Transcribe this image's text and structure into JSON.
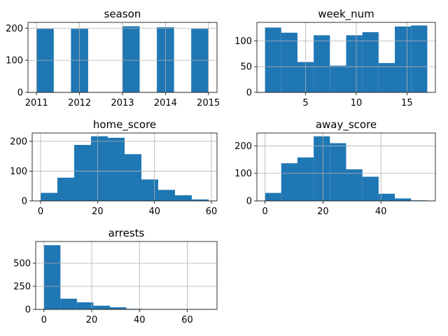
{
  "chart_data": [
    {
      "type": "bar",
      "title": "season",
      "xlim": [
        2010.8,
        2015.2
      ],
      "ylim": [
        0,
        218
      ],
      "xticks": [
        2011,
        2012,
        2013,
        2014,
        2015
      ],
      "yticks": [
        0,
        100,
        200
      ],
      "grid": true,
      "color": "#1f77b4",
      "bins": [
        {
          "x0": 2011.0,
          "x1": 2011.4,
          "count": 198
        },
        {
          "x0": 2011.4,
          "x1": 2011.8,
          "count": 0
        },
        {
          "x0": 2011.8,
          "x1": 2012.2,
          "count": 198
        },
        {
          "x0": 2012.2,
          "x1": 2012.6,
          "count": 0
        },
        {
          "x0": 2012.6,
          "x1": 2013.0,
          "count": 0
        },
        {
          "x0": 2013.0,
          "x1": 2013.4,
          "count": 206
        },
        {
          "x0": 2013.4,
          "x1": 2013.8,
          "count": 0
        },
        {
          "x0": 2013.8,
          "x1": 2014.2,
          "count": 203
        },
        {
          "x0": 2014.2,
          "x1": 2014.6,
          "count": 0
        },
        {
          "x0": 2014.6,
          "x1": 2015.0,
          "count": 198
        }
      ]
    },
    {
      "type": "bar",
      "title": "week_num",
      "xlim": [
        0.2,
        17.8
      ],
      "ylim": [
        0,
        136
      ],
      "xticks": [
        5,
        10,
        15
      ],
      "yticks": [
        0,
        50,
        100
      ],
      "grid": true,
      "color": "#1f77b4",
      "bins": [
        {
          "x0": 1.0,
          "x1": 2.6,
          "count": 126
        },
        {
          "x0": 2.6,
          "x1": 4.2,
          "count": 116
        },
        {
          "x0": 4.2,
          "x1": 5.8,
          "count": 59
        },
        {
          "x0": 5.8,
          "x1": 7.4,
          "count": 111
        },
        {
          "x0": 7.4,
          "x1": 9.0,
          "count": 52
        },
        {
          "x0": 9.0,
          "x1": 10.6,
          "count": 111
        },
        {
          "x0": 10.6,
          "x1": 12.2,
          "count": 117
        },
        {
          "x0": 12.2,
          "x1": 13.8,
          "count": 57
        },
        {
          "x0": 13.8,
          "x1": 15.4,
          "count": 128
        },
        {
          "x0": 15.4,
          "x1": 17.0,
          "count": 130
        }
      ]
    },
    {
      "type": "bar",
      "title": "home_score",
      "xlim": [
        -2.95,
        61.95
      ],
      "ylim": [
        0,
        228
      ],
      "xticks": [
        0,
        20,
        40,
        60
      ],
      "yticks": [
        0,
        100,
        200
      ],
      "grid": true,
      "color": "#1f77b4",
      "bins": [
        {
          "x0": 0.0,
          "x1": 5.9,
          "count": 27
        },
        {
          "x0": 5.9,
          "x1": 11.8,
          "count": 78
        },
        {
          "x0": 11.8,
          "x1": 17.7,
          "count": 188
        },
        {
          "x0": 17.7,
          "x1": 23.6,
          "count": 217
        },
        {
          "x0": 23.6,
          "x1": 29.5,
          "count": 212
        },
        {
          "x0": 29.5,
          "x1": 35.4,
          "count": 157
        },
        {
          "x0": 35.4,
          "x1": 41.3,
          "count": 72
        },
        {
          "x0": 41.3,
          "x1": 47.2,
          "count": 37
        },
        {
          "x0": 47.2,
          "x1": 53.1,
          "count": 19
        },
        {
          "x0": 53.1,
          "x1": 59.0,
          "count": 5
        }
      ]
    },
    {
      "type": "bar",
      "title": "away_score",
      "xlim": [
        -2.8,
        58.8
      ],
      "ylim": [
        0,
        247
      ],
      "xticks": [
        0,
        20,
        40
      ],
      "yticks": [
        0,
        100,
        200
      ],
      "grid": true,
      "color": "#1f77b4",
      "bins": [
        {
          "x0": 0.0,
          "x1": 5.6,
          "count": 29
        },
        {
          "x0": 5.6,
          "x1": 11.2,
          "count": 137
        },
        {
          "x0": 11.2,
          "x1": 16.8,
          "count": 158
        },
        {
          "x0": 16.8,
          "x1": 22.4,
          "count": 235
        },
        {
          "x0": 22.4,
          "x1": 28.0,
          "count": 210
        },
        {
          "x0": 28.0,
          "x1": 33.6,
          "count": 115
        },
        {
          "x0": 33.6,
          "x1": 39.2,
          "count": 88
        },
        {
          "x0": 39.2,
          "x1": 44.8,
          "count": 26
        },
        {
          "x0": 44.8,
          "x1": 50.4,
          "count": 9
        },
        {
          "x0": 50.4,
          "x1": 56.0,
          "count": 2
        }
      ]
    },
    {
      "type": "bar",
      "title": "arrests",
      "xlim": [
        -3.45,
        72.45
      ],
      "ylim": [
        0,
        735
      ],
      "xticks": [
        0,
        20,
        40,
        60
      ],
      "yticks": [
        0,
        250,
        500
      ],
      "grid": true,
      "color": "#1f77b4",
      "bins": [
        {
          "x0": 0.0,
          "x1": 6.9,
          "count": 695
        },
        {
          "x0": 6.9,
          "x1": 13.8,
          "count": 116
        },
        {
          "x0": 13.8,
          "x1": 20.7,
          "count": 77
        },
        {
          "x0": 20.7,
          "x1": 27.6,
          "count": 40
        },
        {
          "x0": 27.6,
          "x1": 34.5,
          "count": 23
        },
        {
          "x0": 34.5,
          "x1": 41.4,
          "count": 6
        },
        {
          "x0": 41.4,
          "x1": 48.3,
          "count": 2
        },
        {
          "x0": 48.3,
          "x1": 55.2,
          "count": 1
        },
        {
          "x0": 55.2,
          "x1": 62.1,
          "count": 1
        },
        {
          "x0": 62.1,
          "x1": 69.0,
          "count": 1
        }
      ]
    }
  ]
}
